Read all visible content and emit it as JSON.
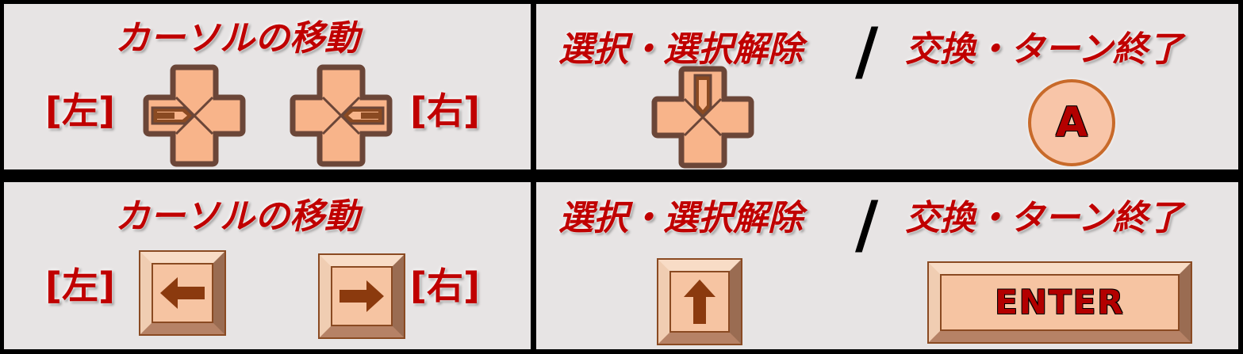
{
  "panels": {
    "gamepad_move": {
      "title": "カーソルの移動",
      "left_label": "[左]",
      "right_label": "[右]"
    },
    "gamepad_action": {
      "select_title": "選択・選択解除",
      "slash": "/",
      "swap_title": "交換・ターン終了",
      "a_button": "A"
    },
    "keyboard_move": {
      "title": "カーソルの移動",
      "left_label": "[左]",
      "right_label": "[右]"
    },
    "keyboard_action": {
      "select_title": "選択・選択解除",
      "slash": "/",
      "swap_title": "交換・ターン終了",
      "enter_key": "ENTER"
    }
  },
  "icons": {
    "dpad_left": "dpad-left-icon",
    "dpad_right": "dpad-right-icon",
    "dpad_up": "dpad-up-icon",
    "arrow_left": "arrow-left-icon",
    "arrow_right": "arrow-right-icon",
    "arrow_up": "arrow-up-icon"
  },
  "colors": {
    "background": "#e7e4e4",
    "text_red": "#c00000",
    "button_fill": "#f8b48a",
    "button_outline": "#6b4638",
    "arrow_brown": "#8b3a0e",
    "divider": "#000000"
  }
}
